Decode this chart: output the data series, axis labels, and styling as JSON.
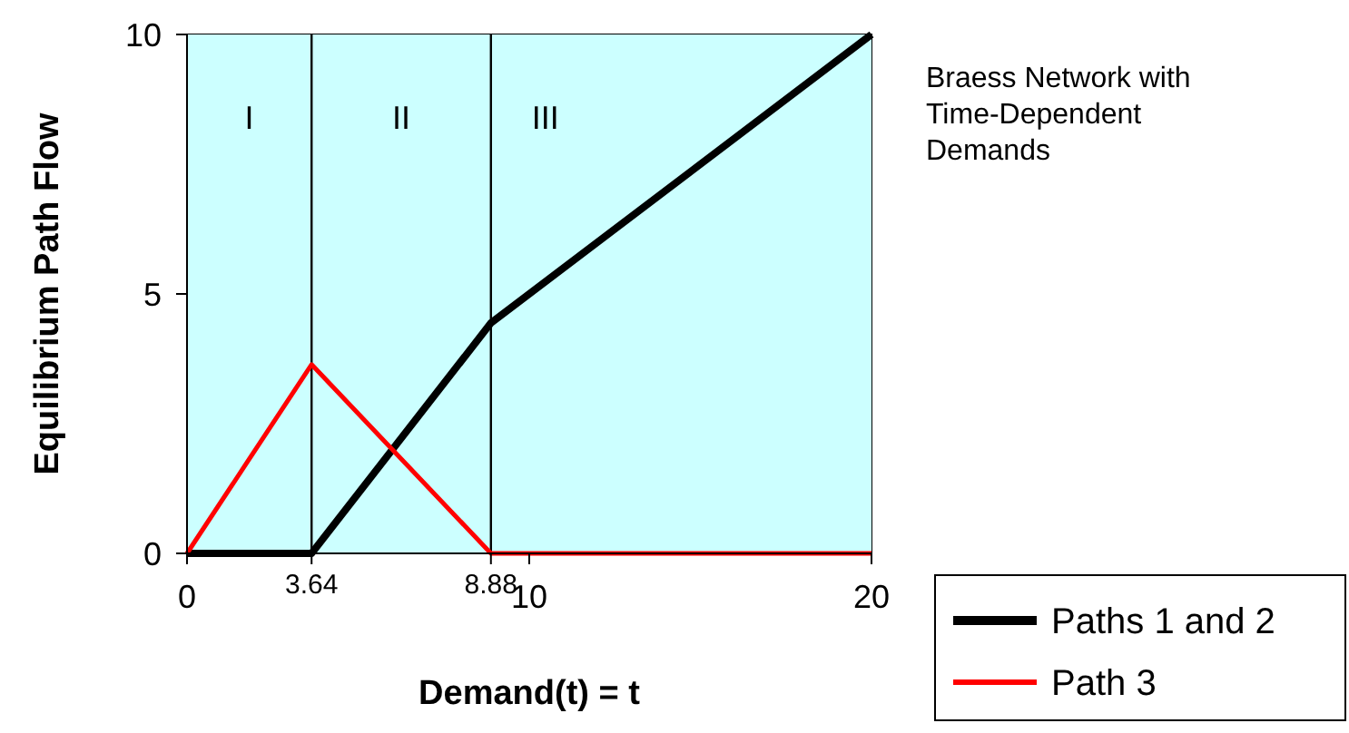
{
  "chart_data": {
    "type": "line",
    "title": "Braess Network with Time-Dependent Demands",
    "xlabel": "Demand(t) = t",
    "ylabel": "Equilibrium Path Flow",
    "xlim": [
      0,
      20
    ],
    "ylim": [
      0,
      10
    ],
    "xticks": [
      0,
      {
        "value": 3.64,
        "label": "3.64"
      },
      {
        "value": 8.88,
        "label": "8.88"
      },
      10,
      20
    ],
    "yticks": [
      0,
      5,
      10
    ],
    "series": [
      {
        "name": "Paths 1 and 2",
        "color": "#000000",
        "x": [
          0,
          3.64,
          8.88,
          20
        ],
        "values": [
          0,
          0,
          4.44,
          10
        ]
      },
      {
        "name": "Path 3",
        "color": "#ff0000",
        "x": [
          0,
          3.64,
          8.88,
          20
        ],
        "values": [
          0,
          3.64,
          0,
          0
        ]
      }
    ],
    "ref_lines": [
      {
        "axis": "x",
        "value": 3.64,
        "color": "#000000"
      },
      {
        "axis": "x",
        "value": 8.88,
        "color": "#000000"
      }
    ],
    "bands": [
      {
        "axis": "x",
        "from": 0,
        "to": 3.64,
        "label": "I",
        "color": "#ccffff"
      },
      {
        "axis": "x",
        "from": 3.64,
        "to": 8.88,
        "label": "II",
        "color": "#ccffff"
      },
      {
        "axis": "x",
        "from": 8.88,
        "to": 20,
        "label": "III",
        "color": "#ccffff"
      }
    ],
    "grid": false,
    "legend": "bottom right",
    "marker": "none",
    "line_style": "solid"
  }
}
